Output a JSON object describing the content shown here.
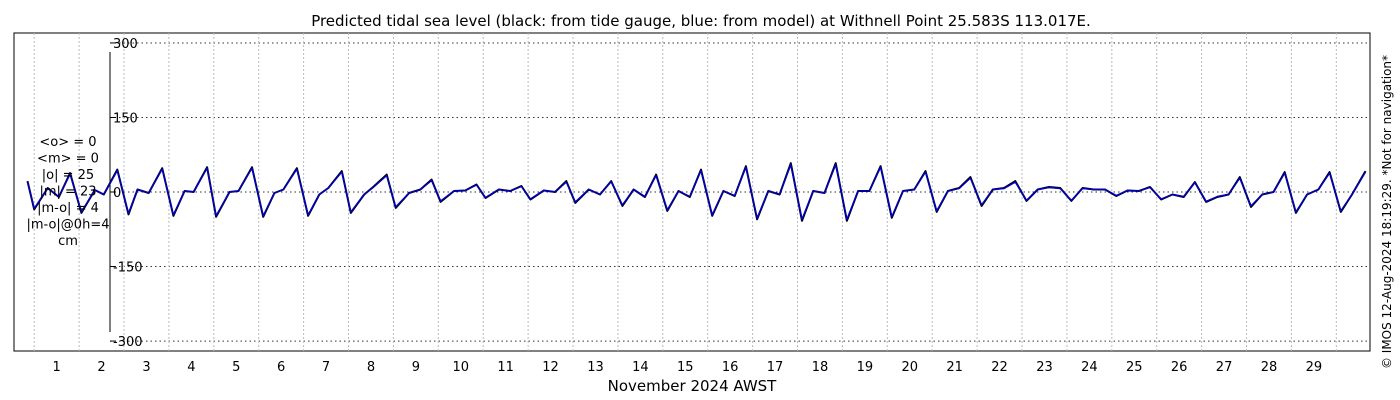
{
  "chart_data": {
    "type": "line",
    "title": "Predicted tidal sea level (black: from tide gauge, blue: from model) at Withnell Point 25.583S 113.017E.",
    "xlabel": "November 2024 AWST",
    "ylabel": "",
    "x_unit": "day of November 2024",
    "xlim": [
      0.05,
      30.25
    ],
    "ylim": [
      -320,
      320
    ],
    "yticks": [
      -300,
      -150,
      0,
      150,
      300
    ],
    "ytick_labels": [
      "-300",
      "-150",
      "0",
      "150",
      "300"
    ],
    "xticks": [
      1,
      2,
      3,
      4,
      5,
      6,
      7,
      8,
      9,
      10,
      11,
      12,
      13,
      14,
      15,
      16,
      17,
      18,
      19,
      20,
      21,
      22,
      23,
      24,
      25,
      26,
      27,
      28,
      29
    ],
    "xtick_labels": [
      "1",
      "2",
      "3",
      "4",
      "5",
      "6",
      "7",
      "8",
      "9",
      "10",
      "11",
      "12",
      "13",
      "14",
      "15",
      "16",
      "17",
      "18",
      "19",
      "20",
      "21",
      "22",
      "23",
      "24",
      "25",
      "26",
      "27",
      "28",
      "29"
    ],
    "grid": true,
    "annotations": [
      "<o> = 0",
      "<m> = 0",
      "|o| = 25",
      "|m| = 23",
      "|m-o| = 4",
      "|m-o|@0h=4",
      "cm"
    ],
    "series": [
      {
        "color": "#000000",
        "x": [
          0.35,
          0.5,
          0.8,
          1.05,
          1.3,
          1.55,
          1.85,
          2.05,
          2.35,
          2.6,
          2.8,
          3.05,
          3.35,
          3.6,
          3.85,
          4.05,
          4.35,
          4.55,
          4.85,
          5.05,
          5.35,
          5.6,
          5.85,
          6.05,
          6.35,
          6.6,
          6.85,
          7.05,
          7.35,
          7.55,
          7.85,
          8.05,
          8.35,
          8.55,
          8.85,
          9.1,
          9.35,
          9.55,
          9.85,
          10.1,
          10.35,
          10.55,
          10.85,
          11.1,
          11.35,
          11.55,
          11.85,
          12.1,
          12.35,
          12.55,
          12.85,
          13.1,
          13.35,
          13.6,
          13.85,
          14.1,
          14.35,
          14.6,
          14.85,
          15.1,
          15.35,
          15.6,
          15.85,
          16.1,
          16.35,
          16.6,
          16.85,
          17.1,
          17.35,
          17.6,
          17.85,
          18.1,
          18.35,
          18.6,
          18.85,
          19.1,
          19.35,
          19.6,
          19.85,
          20.1,
          20.35,
          20.6,
          20.85,
          21.1,
          21.35,
          21.6,
          21.85,
          22.1,
          22.35,
          22.6,
          22.85,
          23.1,
          23.35,
          23.6,
          23.85,
          24.1,
          24.35,
          24.6,
          24.85,
          25.1,
          25.35,
          25.6,
          25.85,
          26.1,
          26.35,
          26.6,
          26.85,
          27.1,
          27.35,
          27.6,
          27.85,
          28.1,
          28.35,
          28.6,
          28.85,
          29.1,
          29.35,
          29.6,
          29.85,
          30.15
        ],
        "y": [
          22,
          -35,
          8,
          -10,
          38,
          -42,
          4,
          -5,
          45,
          -45,
          5,
          -2,
          48,
          -48,
          2,
          0,
          50,
          -50,
          0,
          2,
          50,
          -50,
          -2,
          5,
          48,
          -48,
          -5,
          8,
          42,
          -42,
          -5,
          10,
          35,
          -32,
          -2,
          5,
          25,
          -20,
          2,
          3,
          15,
          -12,
          5,
          2,
          12,
          -15,
          3,
          0,
          22,
          -22,
          5,
          -5,
          22,
          -28,
          5,
          -10,
          35,
          -38,
          2,
          -10,
          45,
          -48,
          2,
          -8,
          52,
          -55,
          2,
          -5,
          58,
          -58,
          2,
          -2,
          58,
          -58,
          2,
          2,
          52,
          -52,
          2,
          5,
          42,
          -40,
          2,
          8,
          30,
          -28,
          5,
          8,
          22,
          -18,
          5,
          10,
          8,
          -18,
          8,
          5,
          5,
          -8,
          3,
          2,
          10,
          -15,
          -5,
          -10,
          20,
          -20,
          -10,
          -5,
          30,
          -30,
          -5,
          0,
          40,
          -42,
          -5,
          5,
          40,
          -40,
          -5,
          42
        ]
      },
      {
        "color": "#0000cc",
        "x": [
          0.35,
          0.5,
          0.8,
          1.05,
          1.3,
          1.55,
          1.85,
          2.05,
          2.35,
          2.6,
          2.8,
          3.05,
          3.35,
          3.6,
          3.85,
          4.05,
          4.35,
          4.55,
          4.85,
          5.05,
          5.35,
          5.6,
          5.85,
          6.05,
          6.35,
          6.6,
          6.85,
          7.05,
          7.35,
          7.55,
          7.85,
          8.05,
          8.35,
          8.55,
          8.85,
          9.1,
          9.35,
          9.55,
          9.85,
          10.1,
          10.35,
          10.55,
          10.85,
          11.1,
          11.35,
          11.55,
          11.85,
          12.1,
          12.35,
          12.55,
          12.85,
          13.1,
          13.35,
          13.6,
          13.85,
          14.1,
          14.35,
          14.6,
          14.85,
          15.1,
          15.35,
          15.6,
          15.85,
          16.1,
          16.35,
          16.6,
          16.85,
          17.1,
          17.35,
          17.6,
          17.85,
          18.1,
          18.35,
          18.6,
          18.85,
          19.1,
          19.35,
          19.6,
          19.85,
          20.1,
          20.35,
          20.6,
          20.85,
          21.1,
          21.35,
          21.6,
          21.85,
          22.1,
          22.35,
          22.6,
          22.85,
          23.1,
          23.35,
          23.6,
          23.85,
          24.1,
          24.35,
          24.6,
          24.85,
          25.1,
          25.35,
          25.6,
          25.85,
          26.1,
          26.35,
          26.6,
          26.85,
          27.1,
          27.35,
          27.6,
          27.85,
          28.1,
          28.35,
          28.6,
          28.85,
          29.1,
          29.35,
          29.6,
          29.85,
          30.15
        ],
        "y": [
          20,
          -33,
          7,
          -9,
          36,
          -40,
          4,
          -5,
          43,
          -43,
          5,
          -2,
          46,
          -46,
          2,
          0,
          48,
          -48,
          0,
          2,
          48,
          -48,
          -2,
          5,
          46,
          -46,
          -5,
          8,
          40,
          -40,
          -5,
          9,
          33,
          -30,
          -2,
          5,
          23,
          -18,
          2,
          3,
          14,
          -11,
          5,
          2,
          11,
          -14,
          3,
          0,
          20,
          -20,
          5,
          -5,
          21,
          -26,
          5,
          -9,
          33,
          -36,
          2,
          -9,
          43,
          -46,
          2,
          -7,
          50,
          -53,
          2,
          -5,
          55,
          -55,
          2,
          -2,
          55,
          -55,
          2,
          2,
          50,
          -50,
          2,
          5,
          40,
          -38,
          2,
          7,
          28,
          -26,
          5,
          7,
          20,
          -17,
          5,
          9,
          7,
          -17,
          7,
          5,
          5,
          -7,
          3,
          2,
          9,
          -14,
          -5,
          -9,
          19,
          -19,
          -9,
          -5,
          28,
          -28,
          -5,
          0,
          38,
          -40,
          -5,
          5,
          38,
          -38,
          -5,
          40
        ]
      }
    ]
  },
  "side_credit": "© IMOS 12-Aug-2024 18:19:29. *Not for navigation*"
}
